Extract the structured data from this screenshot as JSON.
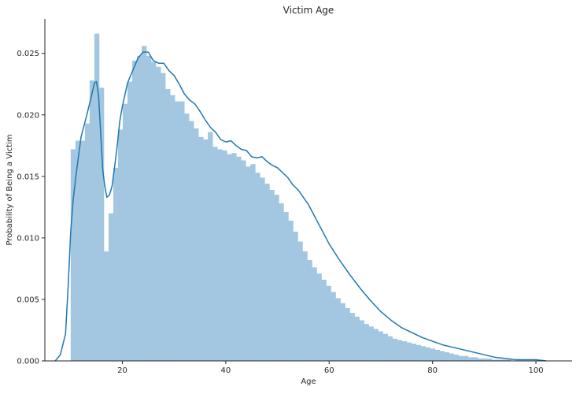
{
  "chart_data": {
    "type": "bar",
    "title": "Victim Age",
    "xlabel": "Age",
    "ylabel": "Probability of Being a Victim",
    "xlim": [
      5,
      107
    ],
    "ylim": [
      0,
      0.0278
    ],
    "xticks": [
      20,
      40,
      60,
      80,
      100
    ],
    "xtick_labels": [
      "20",
      "40",
      "60",
      "80",
      "100"
    ],
    "yticks": [
      0,
      0.005,
      0.01,
      0.015,
      0.02,
      0.025
    ],
    "ytick_labels": [
      "0.000",
      "0.005",
      "0.010",
      "0.015",
      "0.020",
      "0.025"
    ],
    "grid": false,
    "legend": "none",
    "colors": {
      "hist": "#a3c7e0",
      "kde": "#1f77b4",
      "axis": "#262626"
    },
    "histogram": {
      "bin_start": 10,
      "bin_width": 0.915,
      "values": [
        0.0172,
        0.0179,
        0.0179,
        0.0193,
        0.0228,
        0.0266,
        0.0222,
        0.0089,
        0.012,
        0.0157,
        0.0188,
        0.0209,
        0.0227,
        0.0244,
        0.0248,
        0.0256,
        0.0248,
        0.0243,
        0.0239,
        0.0234,
        0.0221,
        0.0216,
        0.0211,
        0.0211,
        0.0201,
        0.0195,
        0.0189,
        0.0182,
        0.018,
        0.0186,
        0.0174,
        0.0172,
        0.0171,
        0.0168,
        0.0169,
        0.0166,
        0.0163,
        0.0158,
        0.016,
        0.0153,
        0.0149,
        0.0144,
        0.0139,
        0.0135,
        0.0128,
        0.0121,
        0.0114,
        0.0105,
        0.0097,
        0.0089,
        0.0082,
        0.0076,
        0.0071,
        0.0066,
        0.0061,
        0.0056,
        0.0051,
        0.0047,
        0.0043,
        0.0039,
        0.0036,
        0.0033,
        0.003,
        0.0028,
        0.0026,
        0.0024,
        0.0022,
        0.002,
        0.0018,
        0.0017,
        0.0016,
        0.0015,
        0.0014,
        0.0013,
        0.0012,
        0.0011,
        0.001,
        0.0009,
        0.0008,
        0.0007,
        0.0006,
        0.0005,
        0.0004,
        0.0004,
        0.0003,
        0.0003,
        0.0002,
        0.0002,
        0.0002,
        0.0001,
        0.0001,
        0.0001,
        0.0001
      ]
    },
    "kde": {
      "x": [
        7,
        8,
        9,
        9.5,
        10,
        10.5,
        11,
        12,
        13,
        14,
        14.6,
        15,
        15.4,
        15.8,
        16.2,
        16.6,
        17,
        17.5,
        18,
        18.5,
        19,
        19.5,
        20,
        21,
        22,
        23,
        24,
        25,
        26,
        27,
        28,
        29,
        30,
        31,
        32,
        33,
        34,
        35,
        36,
        37,
        38,
        39,
        40,
        41,
        42,
        43,
        44,
        45,
        46,
        47,
        48,
        49,
        50,
        51,
        52,
        53,
        54,
        55,
        56,
        57,
        58,
        59,
        60,
        62,
        64,
        66,
        68,
        70,
        72,
        74,
        76,
        78,
        80,
        82,
        84,
        86,
        88,
        90,
        92,
        94,
        96,
        98,
        100,
        102
      ],
      "y": [
        0,
        0.0005,
        0.0022,
        0.006,
        0.0105,
        0.0132,
        0.015,
        0.0182,
        0.0198,
        0.0215,
        0.0226,
        0.0227,
        0.0215,
        0.0185,
        0.0155,
        0.0142,
        0.0133,
        0.0135,
        0.0142,
        0.0158,
        0.0175,
        0.0195,
        0.0207,
        0.0226,
        0.0236,
        0.0246,
        0.0251,
        0.0251,
        0.0244,
        0.0242,
        0.0242,
        0.0236,
        0.0232,
        0.0225,
        0.0217,
        0.0212,
        0.0209,
        0.0203,
        0.0196,
        0.019,
        0.0186,
        0.018,
        0.0178,
        0.0179,
        0.0175,
        0.0172,
        0.0171,
        0.0166,
        0.0165,
        0.0166,
        0.0162,
        0.0159,
        0.0157,
        0.0153,
        0.0149,
        0.0143,
        0.0139,
        0.0133,
        0.0127,
        0.0119,
        0.0111,
        0.0103,
        0.0095,
        0.0082,
        0.007,
        0.0059,
        0.0049,
        0.004,
        0.0033,
        0.0027,
        0.0023,
        0.0019,
        0.0016,
        0.0013,
        0.0011,
        0.0009,
        0.0007,
        0.0005,
        0.0003,
        0.0002,
        0.0001,
        0.0001,
        0.0001,
        0.0
      ]
    }
  }
}
